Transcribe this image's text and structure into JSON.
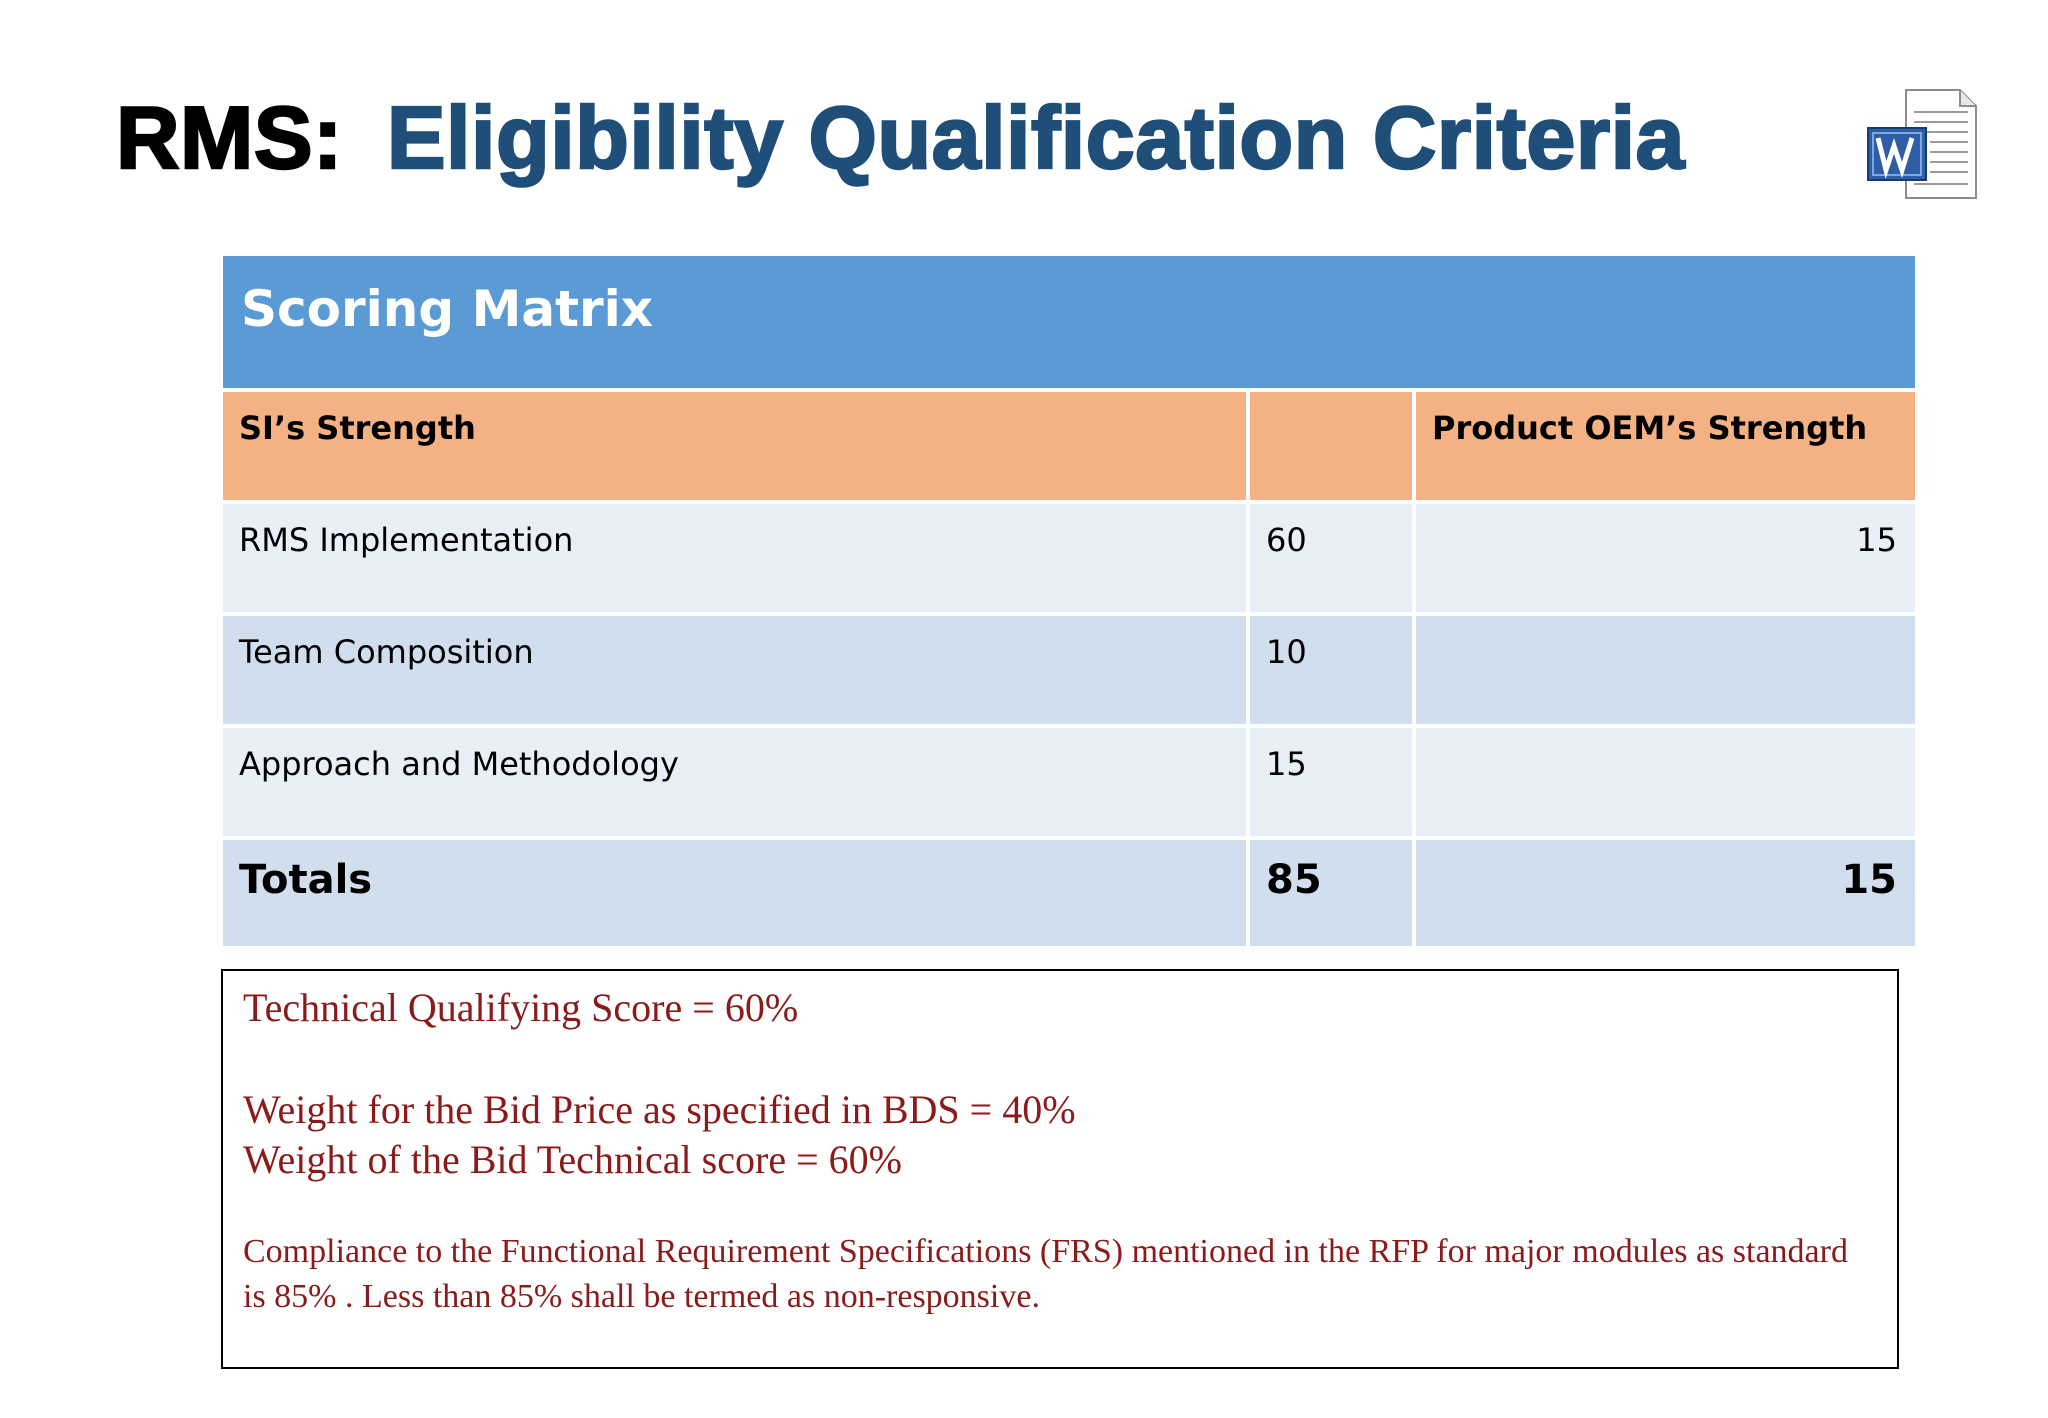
{
  "slide": {
    "title_prefix": "RMS:",
    "title_main": "Eligibility Qualification Criteria",
    "icon": "word-document-icon"
  },
  "matrix": {
    "title": "Scoring Matrix",
    "header": {
      "col1": "SI’s Strength",
      "col2": "",
      "col3": "Product OEM’s Strength"
    },
    "rows": [
      {
        "label": "RMS Implementation",
        "si": "60",
        "oem": "15"
      },
      {
        "label": "Team Composition",
        "si": "10",
        "oem": ""
      },
      {
        "label": "Approach and Methodology",
        "si": "15",
        "oem": ""
      }
    ],
    "totals": {
      "label": "Totals",
      "si": "85",
      "oem": "15"
    }
  },
  "notes": {
    "line1": "Technical Qualifying Score = 60%",
    "line2": "Weight for the Bid Price as specified in BDS = 40%",
    "line3": "Weight of the Bid Technical score = 60%",
    "line4": "Compliance to the Functional Requirement Specifications (FRS)  mentioned in the RFP for major modules as standard is 85% .  Less than 85% shall be termed as non-responsive."
  },
  "colors": {
    "title_blue": "#1f4e79",
    "matrix_header_blue": "#5b9bd5",
    "column_header_orange": "#f4b183",
    "row_light": "#e9eff7",
    "row_dark": "#d0deed",
    "note_text_red": "#8b1a1a"
  }
}
